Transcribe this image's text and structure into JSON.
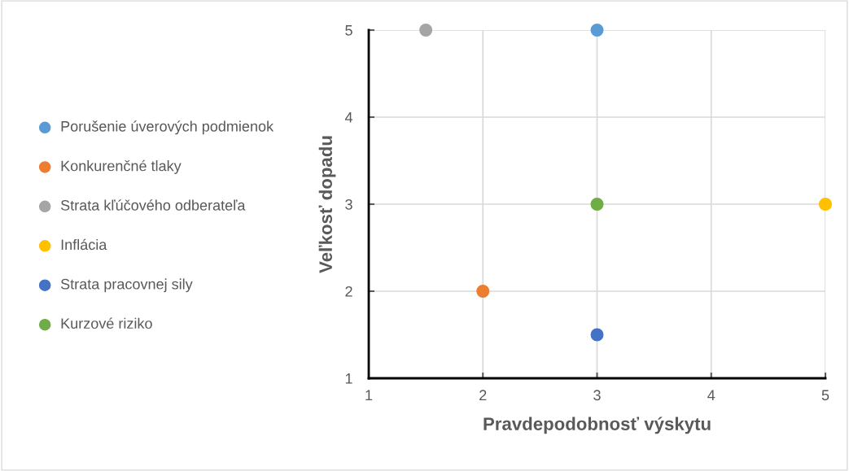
{
  "chart_data": {
    "type": "scatter",
    "xlabel": "Pravdepodobnosť výskytu",
    "ylabel": "Veľkosť dopadu",
    "series": [
      {
        "name": "Porušenie úverových podmienok",
        "color": "#5b9bd5",
        "x": [
          3
        ],
        "values": [
          5
        ]
      },
      {
        "name": "Konkurenčné tlaky",
        "color": "#ed7d31",
        "x": [
          2
        ],
        "values": [
          2
        ]
      },
      {
        "name": "Strata kľúčového odberateľa",
        "color": "#a5a5a5",
        "x": [
          1.5
        ],
        "values": [
          5
        ]
      },
      {
        "name": "Inflácia",
        "color": "#ffc000",
        "x": [
          5
        ],
        "values": [
          3
        ]
      },
      {
        "name": "Strata pracovnej sily",
        "color": "#4472c4",
        "x": [
          3
        ],
        "values": [
          1.5
        ]
      },
      {
        "name": "Kurzové riziko",
        "color": "#70ad47",
        "x": [
          3
        ],
        "values": [
          3
        ]
      }
    ],
    "xlim": [
      1,
      5
    ],
    "xticks": [
      1,
      2,
      3,
      4,
      5
    ],
    "ylim": [
      1,
      5
    ],
    "yticks": [
      1,
      2,
      3,
      4,
      5
    ],
    "grid": true,
    "legend": "left",
    "marker": "circle"
  }
}
